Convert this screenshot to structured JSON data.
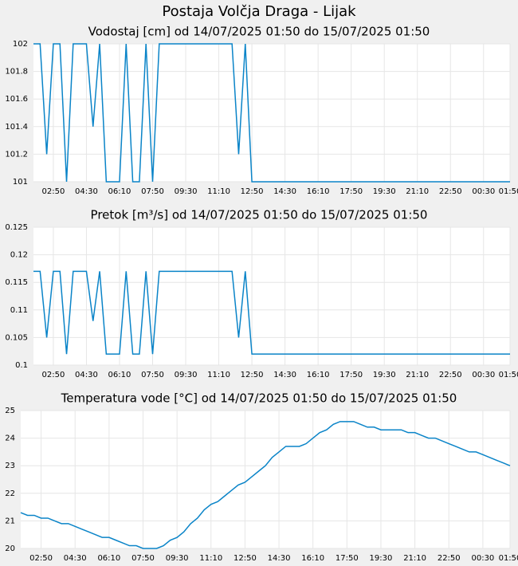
{
  "title": "Postaja Volčja Draga - Lijak",
  "chart_data": [
    {
      "type": "line",
      "title": "Vodostaj [cm] od 14/07/2025 01:50 do 15/07/2025 01:50",
      "color": "#0a84c8",
      "grid": true,
      "categories": [
        null,
        null,
        null,
        "02:50",
        null,
        null,
        null,
        null,
        "04:30",
        null,
        null,
        null,
        null,
        "06:10",
        null,
        null,
        null,
        null,
        "07:50",
        null,
        null,
        null,
        null,
        "09:30",
        null,
        null,
        null,
        null,
        "11:10",
        null,
        null,
        null,
        null,
        "12:50",
        null,
        null,
        null,
        null,
        "14:30",
        null,
        null,
        null,
        null,
        "16:10",
        null,
        null,
        null,
        null,
        "17:50",
        null,
        null,
        null,
        null,
        "19:30",
        null,
        null,
        null,
        null,
        "21:10",
        null,
        null,
        null,
        null,
        "22:50",
        null,
        null,
        null,
        null,
        "00:30",
        null,
        null,
        null,
        "01:50"
      ],
      "values": [
        102,
        102,
        101.2,
        102,
        102,
        101,
        102,
        102,
        102,
        101.4,
        102,
        101,
        101,
        101,
        102,
        101,
        101,
        102,
        101,
        102,
        102,
        102,
        102,
        102,
        102,
        102,
        102,
        102,
        102,
        102,
        102,
        101.2,
        102,
        101,
        101,
        101,
        101,
        101,
        101,
        101,
        101,
        101,
        101,
        101,
        101,
        101,
        101,
        101,
        101,
        101,
        101,
        101,
        101,
        101,
        101,
        101,
        101,
        101,
        101,
        101,
        101,
        101,
        101,
        101,
        101,
        101,
        101,
        101,
        101,
        101,
        101,
        101,
        101
      ],
      "ylim": [
        101,
        102
      ],
      "yticks": [
        101,
        101.2,
        101.4,
        101.6,
        101.8,
        102
      ]
    },
    {
      "type": "line",
      "title": "Pretok [m³/s] od 14/07/2025 01:50 do 15/07/2025 01:50",
      "color": "#0a84c8",
      "grid": true,
      "categories": [
        null,
        null,
        null,
        "02:50",
        null,
        null,
        null,
        null,
        "04:30",
        null,
        null,
        null,
        null,
        "06:10",
        null,
        null,
        null,
        null,
        "07:50",
        null,
        null,
        null,
        null,
        "09:30",
        null,
        null,
        null,
        null,
        "11:10",
        null,
        null,
        null,
        null,
        "12:50",
        null,
        null,
        null,
        null,
        "14:30",
        null,
        null,
        null,
        null,
        "16:10",
        null,
        null,
        null,
        null,
        "17:50",
        null,
        null,
        null,
        null,
        "19:30",
        null,
        null,
        null,
        null,
        "21:10",
        null,
        null,
        null,
        null,
        "22:50",
        null,
        null,
        null,
        null,
        "00:30",
        null,
        null,
        null,
        "01:50"
      ],
      "values": [
        0.117,
        0.117,
        0.105,
        0.117,
        0.117,
        0.102,
        0.117,
        0.117,
        0.117,
        0.108,
        0.117,
        0.102,
        0.102,
        0.102,
        0.117,
        0.102,
        0.102,
        0.117,
        0.102,
        0.117,
        0.117,
        0.117,
        0.117,
        0.117,
        0.117,
        0.117,
        0.117,
        0.117,
        0.117,
        0.117,
        0.117,
        0.105,
        0.117,
        0.102,
        0.102,
        0.102,
        0.102,
        0.102,
        0.102,
        0.102,
        0.102,
        0.102,
        0.102,
        0.102,
        0.102,
        0.102,
        0.102,
        0.102,
        0.102,
        0.102,
        0.102,
        0.102,
        0.102,
        0.102,
        0.102,
        0.102,
        0.102,
        0.102,
        0.102,
        0.102,
        0.102,
        0.102,
        0.102,
        0.102,
        0.102,
        0.102,
        0.102,
        0.102,
        0.102,
        0.102,
        0.102,
        0.102,
        0.102
      ],
      "ylim": [
        0.1,
        0.125
      ],
      "yticks": [
        0.1,
        0.105,
        0.11,
        0.115,
        0.12,
        0.125
      ]
    },
    {
      "type": "line",
      "title": "Temperatura vode [°C] od 14/07/2025 01:50 do 15/07/2025 01:50",
      "color": "#0a84c8",
      "grid": true,
      "categories": [
        null,
        null,
        null,
        "02:50",
        null,
        null,
        null,
        null,
        "04:30",
        null,
        null,
        null,
        null,
        "06:10",
        null,
        null,
        null,
        null,
        "07:50",
        null,
        null,
        null,
        null,
        "09:30",
        null,
        null,
        null,
        null,
        "11:10",
        null,
        null,
        null,
        null,
        "12:50",
        null,
        null,
        null,
        null,
        "14:30",
        null,
        null,
        null,
        null,
        "16:10",
        null,
        null,
        null,
        null,
        "17:50",
        null,
        null,
        null,
        null,
        "19:30",
        null,
        null,
        null,
        null,
        "21:10",
        null,
        null,
        null,
        null,
        "22:50",
        null,
        null,
        null,
        null,
        "00:30",
        null,
        null,
        null,
        "01:50"
      ],
      "values": [
        21.3,
        21.2,
        21.2,
        21.1,
        21.1,
        21.0,
        20.9,
        20.9,
        20.8,
        20.7,
        20.6,
        20.5,
        20.4,
        20.4,
        20.3,
        20.2,
        20.1,
        20.1,
        20.0,
        20.0,
        20.0,
        20.1,
        20.3,
        20.4,
        20.6,
        20.9,
        21.1,
        21.4,
        21.6,
        21.7,
        21.9,
        22.1,
        22.3,
        22.4,
        22.6,
        22.8,
        23.0,
        23.3,
        23.5,
        23.7,
        23.7,
        23.7,
        23.8,
        24.0,
        24.2,
        24.3,
        24.5,
        24.6,
        24.6,
        24.6,
        24.5,
        24.4,
        24.4,
        24.3,
        24.3,
        24.3,
        24.3,
        24.2,
        24.2,
        24.1,
        24.0,
        24.0,
        23.9,
        23.8,
        23.7,
        23.6,
        23.5,
        23.5,
        23.4,
        23.3,
        23.2,
        23.1,
        23.0
      ],
      "ylim": [
        20,
        25
      ],
      "yticks": [
        20,
        21,
        22,
        23,
        24,
        25
      ]
    }
  ]
}
